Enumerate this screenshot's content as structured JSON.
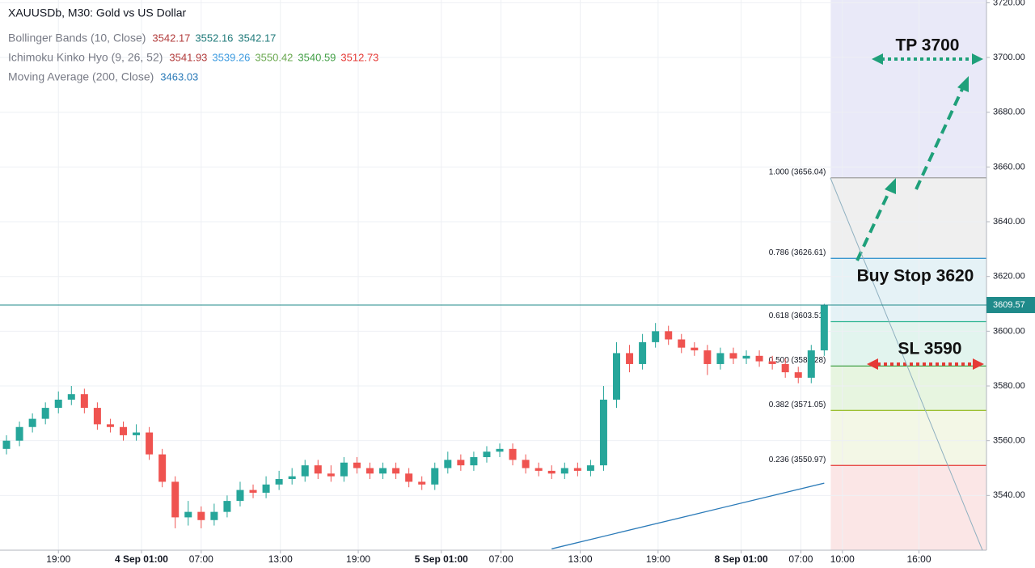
{
  "chart_data": {
    "type": "candlestick",
    "title": "XAUUSDb, M30: Gold vs US Dollar",
    "indicators": [
      {
        "name": "Bollinger Bands (10, Close)",
        "values": [
          3542.17,
          3552.16,
          3542.17
        ],
        "colors": [
          "#b23b3b",
          "#1f7a7a",
          "#1f7a7a"
        ]
      },
      {
        "name": "Ichimoku Kinko Hyo (9, 26, 52)",
        "values": [
          3541.93,
          3539.26,
          3550.42,
          3540.59,
          3512.73
        ],
        "colors": [
          "#b23b3b",
          "#3d9be0",
          "#6aa84f",
          "#43a047",
          "#e53935"
        ]
      },
      {
        "name": "Moving Average (200, Close)",
        "values": [
          3463.03
        ],
        "colors": [
          "#2a7ab8"
        ],
        "line": {
          "x": [
            42,
            63
          ],
          "values": [
            3520.5,
            3544.5
          ],
          "color": "#2a7ab8"
        }
      }
    ],
    "up_color": "#26a69a",
    "down_color": "#ef5350",
    "open": [
      3557,
      3560,
      3565,
      3568,
      3572,
      3575,
      3577,
      3572,
      3566,
      3565,
      3562,
      3563,
      3555,
      3545,
      3532,
      3534,
      3531,
      3534,
      3538,
      3542,
      3541,
      3544,
      3546,
      3547,
      3551,
      3548,
      3547,
      3552,
      3550,
      3548,
      3550,
      3548,
      3545,
      3544,
      3550,
      3553,
      3551,
      3554,
      3556,
      3557,
      3553,
      3550,
      3549,
      3548,
      3550,
      3549,
      3551,
      3575,
      3592,
      3588,
      3596,
      3600,
      3597,
      3594,
      3593,
      3588,
      3592,
      3590,
      3591,
      3589,
      3588,
      3585,
      3583,
      3593
    ],
    "high": [
      3562,
      3567,
      3570,
      3574,
      3578,
      3580,
      3579,
      3574,
      3568,
      3567,
      3566,
      3565,
      3557,
      3547,
      3538,
      3536,
      3537,
      3540,
      3545,
      3544,
      3547,
      3549,
      3550,
      3553,
      3553,
      3551,
      3554,
      3554,
      3552,
      3552,
      3552,
      3550,
      3547,
      3552,
      3556,
      3555,
      3556,
      3558,
      3559,
      3559,
      3555,
      3552,
      3551,
      3552,
      3552,
      3553,
      3580,
      3596,
      3595,
      3599,
      3603,
      3602,
      3599,
      3596,
      3595,
      3594,
      3594,
      3593,
      3593,
      3591,
      3590,
      3587,
      3595,
      3610
    ],
    "low": [
      3555,
      3558,
      3563,
      3566,
      3570,
      3573,
      3570,
      3564,
      3563,
      3560,
      3560,
      3553,
      3543,
      3528,
      3529,
      3528,
      3529,
      3532,
      3536,
      3539,
      3539,
      3542,
      3544,
      3545,
      3546,
      3545,
      3545,
      3548,
      3546,
      3546,
      3546,
      3543,
      3542,
      3542,
      3548,
      3549,
      3549,
      3552,
      3554,
      3551,
      3548,
      3547,
      3546,
      3546,
      3547,
      3547,
      3549,
      3572,
      3585,
      3586,
      3594,
      3595,
      3592,
      3591,
      3584,
      3586,
      3588,
      3588,
      3587,
      3586,
      3583,
      3581,
      3581,
      3591
    ],
    "close": [
      3560,
      3565,
      3568,
      3572,
      3575,
      3577,
      3572,
      3566,
      3565,
      3562,
      3563,
      3555,
      3545,
      3532,
      3534,
      3531,
      3534,
      3538,
      3542,
      3541,
      3544,
      3546,
      3547,
      3551,
      3548,
      3547,
      3552,
      3550,
      3548,
      3550,
      3548,
      3545,
      3544,
      3550,
      3553,
      3551,
      3554,
      3556,
      3557,
      3553,
      3550,
      3549,
      3548,
      3550,
      3549,
      3551,
      3575,
      3592,
      3588,
      3596,
      3600,
      3597,
      3594,
      3593,
      3588,
      3592,
      3590,
      3591,
      3589,
      3588,
      3585,
      3583,
      3593,
      3609.57
    ],
    "last_price": 3609.57,
    "last_price_color": "#1f8a8a",
    "fib_levels": [
      {
        "label": "1.000 (3656.04)",
        "value": 3656.04,
        "color": "#9e9e9e",
        "zone_color": "#efefef"
      },
      {
        "label": "0.786 (3626.61)",
        "value": 3626.61,
        "color": "#3b97cf",
        "zone_color": "#e5f2f6"
      },
      {
        "label": "0.618 (3603.51)",
        "value": 3603.51,
        "color": "#2fb592",
        "zone_color": "#e2f4ee"
      },
      {
        "label": "0.500 (3587.28)",
        "value": 3587.28,
        "color": "#43a047",
        "zone_color": "#e7f5e0"
      },
      {
        "label": "0.382 (3571.05)",
        "value": 3571.05,
        "color": "#9bbf2f",
        "zone_color": "#f3f7e6"
      },
      {
        "label": "0.236 (3550.97)",
        "value": 3550.97,
        "color": "#e53935",
        "zone_color": "#fbe6e6"
      }
    ],
    "top_zone_color": "#e9e9f8",
    "annotations": {
      "tp": "TP 3700",
      "buy": "Buy Stop 3620",
      "sl": "SL 3590"
    },
    "xlim": [
      -0.5,
      75.5
    ],
    "xticks": [
      {
        "value": 4.0,
        "label": "19:00"
      },
      {
        "value": 10.4,
        "label": "4 Sep 01:00",
        "bold": true
      },
      {
        "value": 15.0,
        "label": "07:00"
      },
      {
        "value": 21.1,
        "label": "13:00"
      },
      {
        "value": 27.1,
        "label": "19:00"
      },
      {
        "value": 33.5,
        "label": "5 Sep 01:00",
        "bold": true
      },
      {
        "value": 38.1,
        "label": "07:00"
      },
      {
        "value": 44.2,
        "label": "13:00"
      },
      {
        "value": 50.2,
        "label": "19:00"
      },
      {
        "value": 56.6,
        "label": "8 Sep 01:00",
        "bold": true
      },
      {
        "value": 61.2,
        "label": "07:00"
      },
      {
        "value": 64.4,
        "label": "10:00"
      },
      {
        "value": 70.3,
        "label": "16:00"
      }
    ],
    "ylim": [
      3520,
      3721
    ],
    "yticks": [
      {
        "value": 3540,
        "label": "3540.00"
      },
      {
        "value": 3560,
        "label": "3560.00"
      },
      {
        "value": 3580,
        "label": "3580.00"
      },
      {
        "value": 3600,
        "label": "3600.00"
      },
      {
        "value": 3620,
        "label": "3620.00"
      },
      {
        "value": 3640,
        "label": "3640.00"
      },
      {
        "value": 3660,
        "label": "3660.00"
      },
      {
        "value": 3680,
        "label": "3680.00"
      },
      {
        "value": 3700,
        "label": "3700.00"
      },
      {
        "value": 3720,
        "label": "3720.00"
      }
    ],
    "grid": true
  }
}
